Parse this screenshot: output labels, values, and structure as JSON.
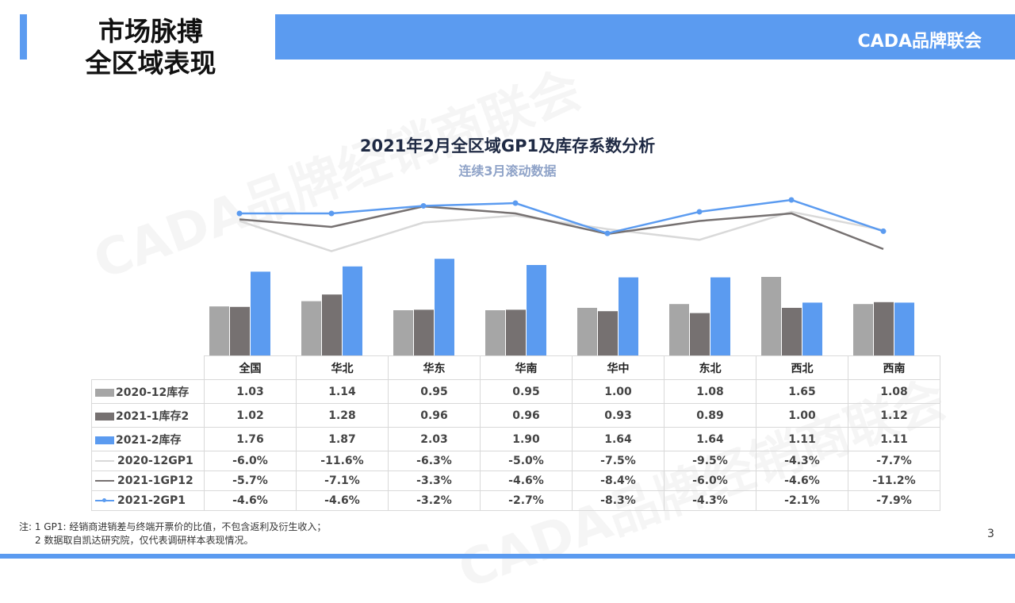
{
  "header": {
    "title_line1": "市场脉搏",
    "title_line2": "全区域表现",
    "brand": "CADA品牌联会"
  },
  "watermark": "CADA品牌经销商联会",
  "chart_data": {
    "type": "bar+line",
    "title": "2021年2月全区域GP1及库存系数分析",
    "subtitle": "连续3月滚动数据",
    "categories": [
      "全国",
      "华北",
      "华东",
      "华南",
      "华中",
      "东北",
      "西北",
      "西南"
    ],
    "series": [
      {
        "name": "2020-12库存",
        "kind": "bar",
        "color": "#a6a6a6",
        "values": [
          1.03,
          1.14,
          0.95,
          0.95,
          1.0,
          1.08,
          1.65,
          1.08
        ],
        "labels": [
          "1.03",
          "1.14",
          "0.95",
          "0.95",
          "1.00",
          "1.08",
          "1.65",
          "1.08"
        ]
      },
      {
        "name": "2021-1库存2",
        "kind": "bar",
        "color": "#767171",
        "values": [
          1.02,
          1.28,
          0.96,
          0.96,
          0.93,
          0.89,
          1.0,
          1.12
        ],
        "labels": [
          "1.02",
          "1.28",
          "0.96",
          "0.96",
          "0.93",
          "0.89",
          "1.00",
          "1.12"
        ]
      },
      {
        "name": "2021-2库存",
        "kind": "bar",
        "color": "#5b9bf0",
        "values": [
          1.76,
          1.87,
          2.03,
          1.9,
          1.64,
          1.64,
          1.11,
          1.11
        ],
        "labels": [
          "1.76",
          "1.87",
          "2.03",
          "1.90",
          "1.64",
          "1.64",
          "1.11",
          "1.11"
        ]
      },
      {
        "name": "2020-12GP1",
        "kind": "line",
        "color": "#d9d9d9",
        "values": [
          -6.0,
          -11.6,
          -6.3,
          -5.0,
          -7.5,
          -9.5,
          -4.3,
          -7.7
        ],
        "labels": [
          "-6.0%",
          "-11.6%",
          "-6.3%",
          "-5.0%",
          "-7.5%",
          "-9.5%",
          "-4.3%",
          "-7.7%"
        ]
      },
      {
        "name": "2021-1GP12",
        "kind": "line",
        "color": "#767171",
        "values": [
          -5.7,
          -7.1,
          -3.3,
          -4.6,
          -8.4,
          -6.0,
          -4.6,
          -11.2
        ],
        "labels": [
          "-5.7%",
          "-7.1%",
          "-3.3%",
          "-4.6%",
          "-8.4%",
          "-6.0%",
          "-4.6%",
          "-11.2%"
        ]
      },
      {
        "name": "2021-2GP1",
        "kind": "line",
        "color": "#5b9bf0",
        "marker": true,
        "values": [
          -4.6,
          -4.6,
          -3.2,
          -2.7,
          -8.3,
          -4.3,
          -2.1,
          -7.9
        ],
        "labels": [
          "-4.6%",
          "-4.6%",
          "-3.2%",
          "-2.7%",
          "-8.3%",
          "-4.3%",
          "-2.1%",
          "-7.9%"
        ]
      }
    ]
  },
  "notes": {
    "line1": "注: 1  GP1: 经销商进销差与终端开票价的比值，不包含返利及衍生收入；",
    "line2": "2 数据取自凯达研究院，仅代表调研样本表现情况。"
  },
  "page_number": "3"
}
